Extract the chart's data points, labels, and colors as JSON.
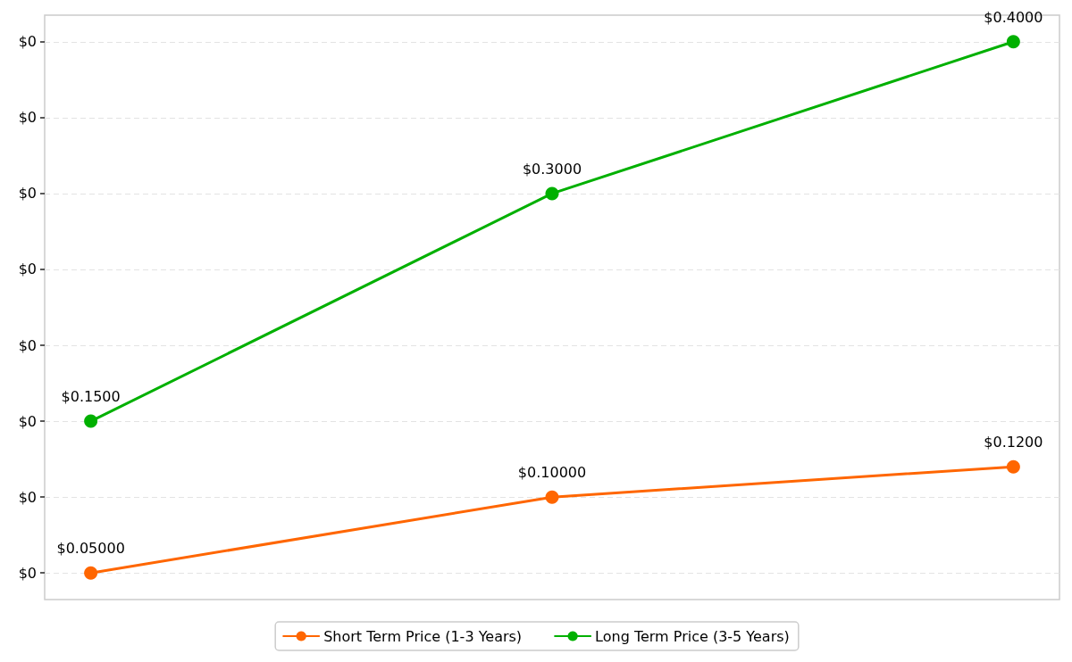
{
  "chart_data": {
    "type": "line",
    "categories": [
      null,
      null,
      null
    ],
    "series": [
      {
        "name": "Short Term Price (1-3 Years)",
        "color": "#ff6600",
        "values": [
          0.05,
          0.1,
          0.12
        ],
        "value_labels": [
          "$0.05000",
          "$0.10000",
          "$0.1200"
        ]
      },
      {
        "name": "Long Term Price (3-5 Years)",
        "color": "#00b000",
        "values": [
          0.15,
          0.3,
          0.4
        ],
        "value_labels": [
          "$0.1500",
          "$0.3000",
          "$0.4000"
        ]
      }
    ],
    "ylim": [
      0.0325,
      0.4175
    ],
    "yticks": [
      {
        "value": 0.05,
        "label": "$0"
      },
      {
        "value": 0.1,
        "label": "$0"
      },
      {
        "value": 0.15,
        "label": "$0"
      },
      {
        "value": 0.2,
        "label": "$0"
      },
      {
        "value": 0.25,
        "label": "$0"
      },
      {
        "value": 0.3,
        "label": "$0"
      },
      {
        "value": 0.35,
        "label": "$0"
      },
      {
        "value": 0.4,
        "label": "$0"
      }
    ],
    "grid": "y",
    "legend": "bottom",
    "marker": "circle",
    "line_style": "solid",
    "tick_labels": "y"
  }
}
